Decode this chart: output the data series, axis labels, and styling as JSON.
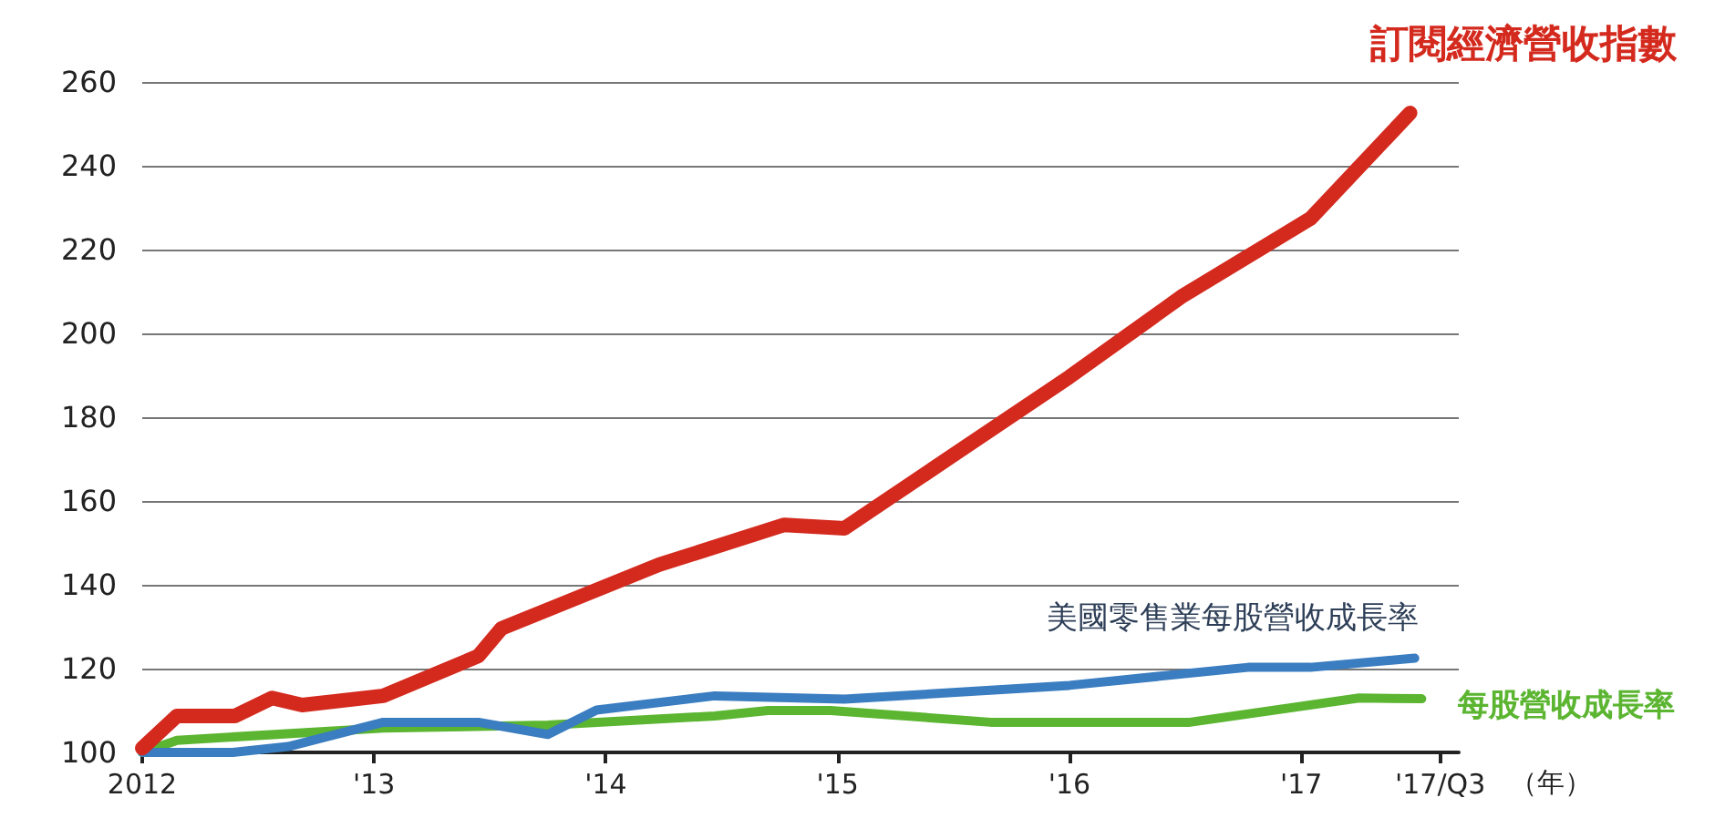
{
  "chart_data": {
    "type": "line",
    "xlabel": "（年）",
    "xlim": [
      2012,
      2017.68
    ],
    "ylim": [
      100,
      260
    ],
    "xticks": [
      {
        "value": 2012,
        "label": "2012"
      },
      {
        "value": 2013,
        "label": "'13"
      },
      {
        "value": 2014,
        "label": "'14"
      },
      {
        "value": 2015,
        "label": "'15"
      },
      {
        "value": 2016,
        "label": "'16"
      },
      {
        "value": 2017,
        "label": "'17"
      },
      {
        "value": 2017.6,
        "label": "'17/Q3"
      }
    ],
    "yticks": [
      100,
      120,
      140,
      160,
      180,
      200,
      220,
      240,
      260
    ],
    "grid": "y",
    "legend": false,
    "marker": "none",
    "line_style": "solid",
    "series": [
      {
        "name": "訂閱經濟營收指數",
        "color": "#d42a1e",
        "x": [
          2012,
          2012.15,
          2012.4,
          2012.56,
          2012.69,
          2013.04,
          2013.45,
          2013.55,
          2014.23,
          2014.77,
          2015.03,
          2016,
          2016.49,
          2017.04,
          2017.47
        ],
        "values": [
          101,
          108.7,
          108.7,
          113,
          111.3,
          113.5,
          123,
          129.6,
          144.8,
          154.3,
          153.5,
          189.6,
          209,
          227.4,
          252.6
        ]
      },
      {
        "name": "美國零售業每股營收成長率",
        "color": "#3a7dc0",
        "x": [
          2012,
          2012.39,
          2012.63,
          2013.04,
          2013.45,
          2013.75,
          2013.96,
          2014.47,
          2015.03,
          2016,
          2016.77,
          2017.04,
          2017.49
        ],
        "values": [
          100,
          100,
          101.4,
          107.2,
          107.2,
          104.3,
          110.1,
          113.5,
          112.7,
          116,
          120.3,
          120.3,
          122.5
        ]
      },
      {
        "name": "每股營收成長率",
        "color": "#5bb531",
        "x": [
          2012,
          2012.15,
          2013.04,
          2013.75,
          2014.47,
          2014.7,
          2014.97,
          2015.66,
          2016.52,
          2017.25,
          2017.52
        ],
        "values": [
          100,
          102.9,
          105.8,
          106.5,
          108.7,
          110,
          110,
          107.2,
          107.2,
          113,
          112.8
        ]
      }
    ]
  }
}
